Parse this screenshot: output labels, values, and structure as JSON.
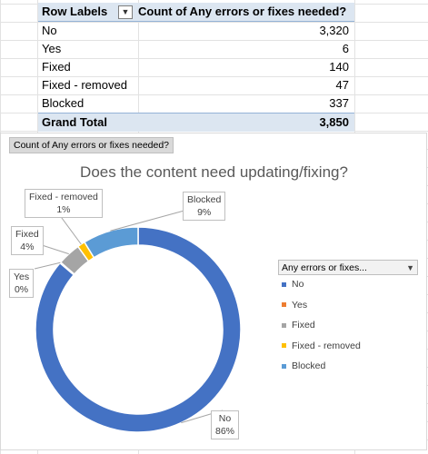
{
  "pivot": {
    "header": {
      "row_labels": "Row Labels",
      "count_label": "Count of Any errors or fixes needed?"
    },
    "rows": [
      {
        "label": "No",
        "value": "3,320"
      },
      {
        "label": "Yes",
        "value": "6"
      },
      {
        "label": "Fixed",
        "value": "140"
      },
      {
        "label": "Fixed - removed",
        "value": "47"
      },
      {
        "label": "Blocked",
        "value": "337"
      }
    ],
    "total": {
      "label": "Grand Total",
      "value": "3,850"
    }
  },
  "chart": {
    "field_button": "Count of Any errors or fixes needed?",
    "legend_title": "Any errors or fixes...",
    "icons": {
      "filter": "filter-dropdown-icon"
    }
  },
  "chart_data": {
    "type": "pie",
    "title": "Does the content need updating/fixing?",
    "categories": [
      "No",
      "Yes",
      "Fixed",
      "Fixed - removed",
      "Blocked"
    ],
    "values": [
      3320,
      6,
      140,
      47,
      337
    ],
    "percent_labels": [
      "86%",
      "0%",
      "4%",
      "1%",
      "9%"
    ],
    "colors": [
      "#4472c4",
      "#ed7d31",
      "#a5a5a5",
      "#ffc000",
      "#5b9bd5"
    ],
    "legend_placement": "right"
  }
}
